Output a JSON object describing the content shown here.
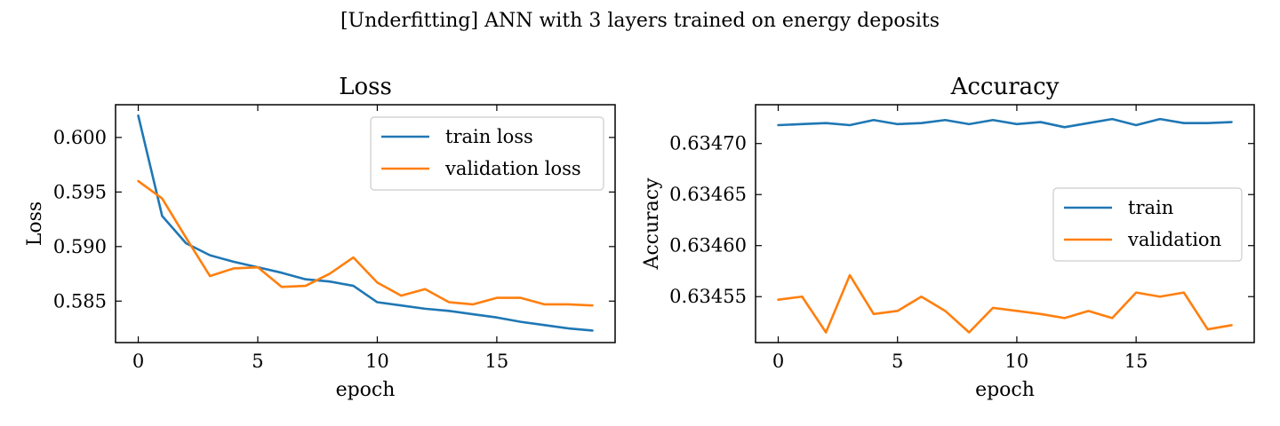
{
  "suptitle": "[Underfitting] ANN with 3 layers trained on energy deposits",
  "colors": {
    "train": "#1f77b4",
    "validation": "#ff7f0e"
  },
  "chart_data": [
    {
      "type": "line",
      "title": "Loss",
      "xlabel": "epoch",
      "ylabel": "Loss",
      "xlim": [
        -0.95,
        19.95
      ],
      "ylim": [
        0.5812,
        0.603
      ],
      "xticks": [
        0,
        5,
        10,
        15
      ],
      "xtick_labels": [
        "0",
        "5",
        "10",
        "15"
      ],
      "yticks": [
        0.585,
        0.59,
        0.595,
        0.6
      ],
      "ytick_labels": [
        "0.585",
        "0.590",
        "0.595",
        "0.600"
      ],
      "legend": "upper-right",
      "x": [
        0,
        1,
        2,
        3,
        4,
        5,
        6,
        7,
        8,
        9,
        10,
        11,
        12,
        13,
        14,
        15,
        16,
        17,
        18,
        19
      ],
      "series": [
        {
          "name": "train loss",
          "color": "#1f77b4",
          "values": [
            0.602,
            0.5928,
            0.5903,
            0.5892,
            0.5886,
            0.5881,
            0.5876,
            0.587,
            0.5868,
            0.5864,
            0.5849,
            0.5846,
            0.5843,
            0.5841,
            0.5838,
            0.5835,
            0.5831,
            0.5828,
            0.5825,
            0.5823
          ]
        },
        {
          "name": "validation loss",
          "color": "#ff7f0e",
          "values": [
            0.596,
            0.5944,
            0.5908,
            0.5873,
            0.588,
            0.5881,
            0.5863,
            0.5864,
            0.5875,
            0.589,
            0.5867,
            0.5855,
            0.5861,
            0.5849,
            0.5847,
            0.5853,
            0.5853,
            0.5847,
            0.5847,
            0.5846
          ]
        }
      ]
    },
    {
      "type": "line",
      "title": "Accuracy",
      "xlabel": "epoch",
      "ylabel": "Accuracy",
      "xlim": [
        -0.95,
        19.95
      ],
      "ylim": [
        0.634505,
        0.634738
      ],
      "xticks": [
        0,
        5,
        10,
        15
      ],
      "xtick_labels": [
        "0",
        "5",
        "10",
        "15"
      ],
      "yticks": [
        0.63455,
        0.6346,
        0.63465,
        0.6347
      ],
      "ytick_labels": [
        "0.63455",
        "0.63460",
        "0.63465",
        "0.63470"
      ],
      "legend": "center-right",
      "x": [
        0,
        1,
        2,
        3,
        4,
        5,
        6,
        7,
        8,
        9,
        10,
        11,
        12,
        13,
        14,
        15,
        16,
        17,
        18,
        19
      ],
      "series": [
        {
          "name": "train",
          "color": "#1f77b4",
          "values": [
            0.634718,
            0.634719,
            0.63472,
            0.634718,
            0.634723,
            0.634719,
            0.63472,
            0.634723,
            0.634719,
            0.634723,
            0.634719,
            0.634721,
            0.634716,
            0.63472,
            0.634724,
            0.634718,
            0.634724,
            0.63472,
            0.63472,
            0.634721
          ]
        },
        {
          "name": "validation",
          "color": "#ff7f0e",
          "values": [
            0.634547,
            0.63455,
            0.634515,
            0.634571,
            0.634533,
            0.634536,
            0.63455,
            0.634536,
            0.634515,
            0.634539,
            0.634536,
            0.634533,
            0.634529,
            0.634536,
            0.634529,
            0.634554,
            0.63455,
            0.634554,
            0.634518,
            0.634522
          ]
        }
      ]
    }
  ]
}
